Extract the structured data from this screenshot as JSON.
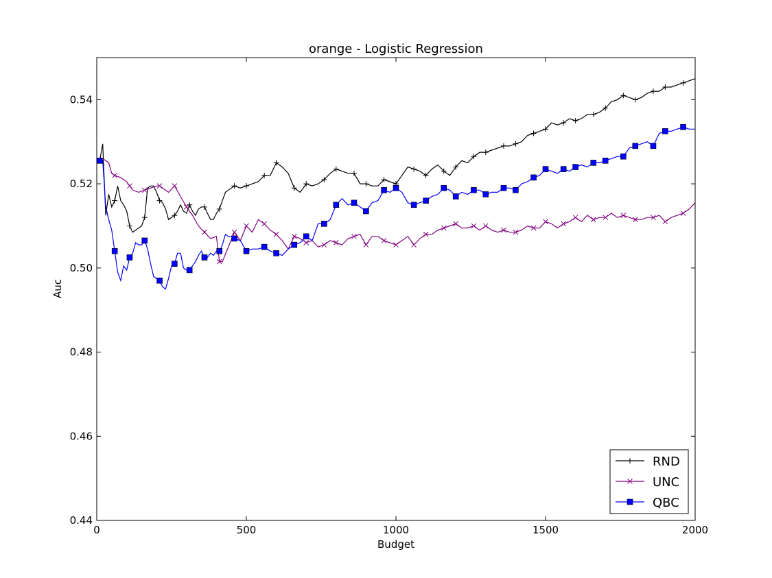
{
  "chart_data": {
    "type": "line",
    "title": "orange - Logistic Regression",
    "xlabel": "Budget",
    "ylabel": "Auc",
    "xlim": [
      0,
      2000
    ],
    "ylim": [
      0.44,
      0.55
    ],
    "xticks": [
      0,
      500,
      1000,
      1500,
      2000
    ],
    "xtick_labels": [
      "0",
      "500",
      "1000",
      "1500",
      "2000"
    ],
    "yticks": [
      0.44,
      0.46,
      0.48,
      0.5,
      0.52,
      0.54
    ],
    "ytick_labels": [
      "0.44",
      "0.46",
      "0.48",
      "0.50",
      "0.52",
      "0.54"
    ],
    "grid": false,
    "legend": "lower-right",
    "series": [
      {
        "name": "RND",
        "color": "#000000",
        "marker": "plus",
        "x": [
          10,
          20,
          30,
          40,
          50,
          60,
          70,
          80,
          90,
          100,
          110,
          120,
          130,
          140,
          150,
          160,
          170,
          180,
          190,
          200,
          210,
          220,
          230,
          240,
          250,
          260,
          270,
          280,
          290,
          300,
          310,
          320,
          330,
          340,
          350,
          360,
          370,
          380,
          390,
          400,
          410,
          420,
          430,
          440,
          450,
          460,
          480,
          500,
          520,
          540,
          560,
          580,
          600,
          620,
          640,
          660,
          680,
          700,
          720,
          740,
          760,
          780,
          800,
          820,
          840,
          860,
          880,
          900,
          920,
          940,
          960,
          980,
          1000,
          1020,
          1040,
          1060,
          1080,
          1100,
          1120,
          1140,
          1160,
          1180,
          1200,
          1220,
          1240,
          1260,
          1280,
          1300,
          1320,
          1340,
          1360,
          1380,
          1400,
          1420,
          1440,
          1460,
          1480,
          1500,
          1520,
          1540,
          1560,
          1580,
          1600,
          1620,
          1640,
          1660,
          1680,
          1700,
          1720,
          1740,
          1760,
          1780,
          1800,
          1820,
          1840,
          1860,
          1880,
          1900,
          1920,
          1940,
          1960,
          1980,
          2000
        ],
        "y": [
          0.5255,
          0.5295,
          0.5125,
          0.5175,
          0.5145,
          0.516,
          0.5195,
          0.516,
          0.515,
          0.5135,
          0.51,
          0.5085,
          0.509,
          0.5095,
          0.51,
          0.512,
          0.519,
          0.5195,
          0.5195,
          0.518,
          0.516,
          0.5155,
          0.514,
          0.5115,
          0.512,
          0.5125,
          0.5135,
          0.515,
          0.5135,
          0.513,
          0.515,
          0.5135,
          0.5125,
          0.514,
          0.5145,
          0.5145,
          0.513,
          0.5115,
          0.5115,
          0.513,
          0.514,
          0.516,
          0.518,
          0.5185,
          0.519,
          0.5195,
          0.519,
          0.5195,
          0.52,
          0.5205,
          0.522,
          0.522,
          0.525,
          0.524,
          0.5225,
          0.519,
          0.518,
          0.52,
          0.5195,
          0.52,
          0.521,
          0.5225,
          0.5235,
          0.523,
          0.5225,
          0.5225,
          0.52,
          0.52,
          0.5195,
          0.5195,
          0.521,
          0.5205,
          0.52,
          0.522,
          0.524,
          0.5235,
          0.523,
          0.522,
          0.5235,
          0.5245,
          0.523,
          0.522,
          0.524,
          0.5255,
          0.525,
          0.5265,
          0.5275,
          0.5275,
          0.528,
          0.5285,
          0.529,
          0.529,
          0.5295,
          0.53,
          0.5315,
          0.532,
          0.5325,
          0.533,
          0.5345,
          0.534,
          0.5345,
          0.5355,
          0.535,
          0.5355,
          0.5365,
          0.5365,
          0.537,
          0.538,
          0.5395,
          0.54,
          0.541,
          0.5405,
          0.54,
          0.5405,
          0.5415,
          0.542,
          0.542,
          0.543,
          0.543,
          0.5435,
          0.544,
          0.5445,
          0.545
        ]
      },
      {
        "name": "UNC",
        "color": "#800080",
        "marker": "x",
        "x": [
          10,
          20,
          30,
          40,
          50,
          60,
          80,
          100,
          110,
          120,
          140,
          160,
          180,
          200,
          210,
          220,
          240,
          260,
          280,
          300,
          320,
          340,
          360,
          380,
          400,
          410,
          420,
          440,
          460,
          480,
          500,
          520,
          540,
          560,
          580,
          600,
          620,
          640,
          660,
          680,
          700,
          720,
          740,
          760,
          780,
          800,
          820,
          840,
          860,
          880,
          900,
          920,
          940,
          960,
          980,
          1000,
          1020,
          1040,
          1060,
          1080,
          1100,
          1120,
          1140,
          1160,
          1180,
          1200,
          1220,
          1240,
          1260,
          1280,
          1300,
          1320,
          1340,
          1360,
          1380,
          1400,
          1420,
          1440,
          1460,
          1480,
          1500,
          1520,
          1540,
          1560,
          1580,
          1600,
          1620,
          1640,
          1660,
          1680,
          1700,
          1720,
          1740,
          1760,
          1780,
          1800,
          1820,
          1840,
          1860,
          1880,
          1900,
          1920,
          1940,
          1960,
          1980,
          2000
        ],
        "y": [
          0.5255,
          0.526,
          0.5255,
          0.525,
          0.5225,
          0.522,
          0.5215,
          0.5205,
          0.5195,
          0.5185,
          0.518,
          0.5185,
          0.519,
          0.5195,
          0.5195,
          0.519,
          0.518,
          0.5195,
          0.517,
          0.5145,
          0.5125,
          0.51,
          0.5085,
          0.507,
          0.5075,
          0.5015,
          0.5015,
          0.505,
          0.5085,
          0.5065,
          0.51,
          0.5085,
          0.5115,
          0.5105,
          0.509,
          0.508,
          0.5065,
          0.5045,
          0.5075,
          0.507,
          0.506,
          0.5065,
          0.505,
          0.5055,
          0.5065,
          0.506,
          0.5055,
          0.507,
          0.5075,
          0.508,
          0.5055,
          0.5075,
          0.5075,
          0.5065,
          0.506,
          0.5055,
          0.5065,
          0.5075,
          0.5055,
          0.507,
          0.508,
          0.508,
          0.509,
          0.5095,
          0.51,
          0.5105,
          0.5095,
          0.5095,
          0.51,
          0.509,
          0.51,
          0.509,
          0.5085,
          0.509,
          0.5085,
          0.5085,
          0.509,
          0.51,
          0.5095,
          0.5095,
          0.511,
          0.5105,
          0.5095,
          0.5105,
          0.511,
          0.512,
          0.511,
          0.5125,
          0.5115,
          0.512,
          0.512,
          0.513,
          0.512,
          0.5125,
          0.512,
          0.5115,
          0.5115,
          0.512,
          0.512,
          0.5125,
          0.511,
          0.512,
          0.5125,
          0.513,
          0.514,
          0.5155
        ]
      },
      {
        "name": "QBC",
        "color": "#0000ff",
        "marker": "square",
        "x": [
          10,
          20,
          30,
          40,
          50,
          60,
          70,
          80,
          90,
          100,
          110,
          120,
          130,
          140,
          150,
          160,
          170,
          180,
          190,
          200,
          210,
          220,
          230,
          240,
          250,
          260,
          270,
          280,
          290,
          300,
          310,
          320,
          330,
          340,
          350,
          360,
          370,
          380,
          390,
          400,
          410,
          420,
          430,
          440,
          450,
          460,
          480,
          500,
          520,
          540,
          560,
          580,
          600,
          620,
          640,
          660,
          680,
          700,
          720,
          740,
          760,
          780,
          800,
          820,
          840,
          860,
          880,
          900,
          920,
          940,
          960,
          980,
          1000,
          1020,
          1040,
          1060,
          1080,
          1100,
          1120,
          1140,
          1160,
          1180,
          1200,
          1220,
          1240,
          1260,
          1280,
          1300,
          1320,
          1340,
          1360,
          1380,
          1400,
          1420,
          1440,
          1460,
          1480,
          1500,
          1520,
          1540,
          1560,
          1580,
          1600,
          1620,
          1640,
          1660,
          1680,
          1700,
          1720,
          1740,
          1760,
          1780,
          1800,
          1820,
          1840,
          1860,
          1880,
          1900,
          1920,
          1940,
          1960,
          1980,
          2000
        ],
        "y": [
          0.5255,
          0.5255,
          0.5145,
          0.5115,
          0.509,
          0.504,
          0.499,
          0.497,
          0.5005,
          0.4995,
          0.5025,
          0.5035,
          0.506,
          0.5055,
          0.5055,
          0.5065,
          0.5045,
          0.501,
          0.498,
          0.4975,
          0.497,
          0.4955,
          0.495,
          0.4975,
          0.5005,
          0.501,
          0.5035,
          0.5035,
          0.5,
          0.4995,
          0.4995,
          0.5005,
          0.5015,
          0.503,
          0.504,
          0.5025,
          0.5025,
          0.5035,
          0.503,
          0.504,
          0.504,
          0.5055,
          0.508,
          0.5075,
          0.5075,
          0.507,
          0.5065,
          0.504,
          0.5045,
          0.5045,
          0.505,
          0.504,
          0.5035,
          0.503,
          0.5045,
          0.5055,
          0.506,
          0.5075,
          0.5065,
          0.5105,
          0.5105,
          0.5115,
          0.515,
          0.5165,
          0.515,
          0.5155,
          0.5145,
          0.5135,
          0.5155,
          0.516,
          0.5185,
          0.518,
          0.519,
          0.518,
          0.5155,
          0.515,
          0.5155,
          0.516,
          0.517,
          0.5175,
          0.519,
          0.5185,
          0.517,
          0.518,
          0.5175,
          0.5185,
          0.5185,
          0.5175,
          0.518,
          0.518,
          0.519,
          0.519,
          0.5185,
          0.52,
          0.5205,
          0.5215,
          0.522,
          0.5235,
          0.523,
          0.5225,
          0.5235,
          0.523,
          0.524,
          0.5245,
          0.524,
          0.525,
          0.525,
          0.5255,
          0.526,
          0.5265,
          0.5265,
          0.5285,
          0.529,
          0.5295,
          0.53,
          0.529,
          0.532,
          0.5325,
          0.5325,
          0.533,
          0.5335,
          0.533,
          0.533
        ]
      }
    ]
  }
}
